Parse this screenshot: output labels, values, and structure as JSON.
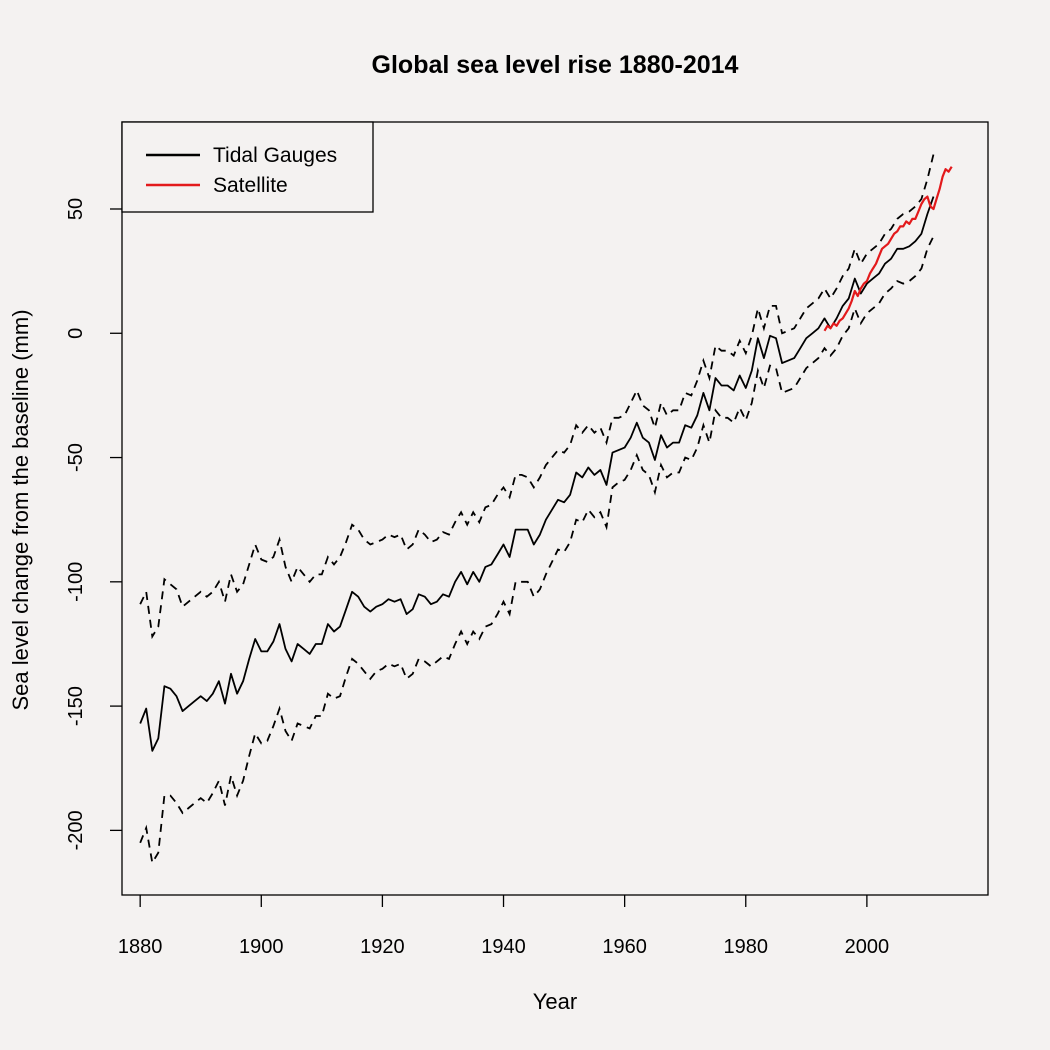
{
  "chart_data": {
    "type": "line",
    "title": "Global sea level rise 1880-2014",
    "xlabel": "Year",
    "ylabel": "Sea level change from the baseline (mm)",
    "xlim": [
      1877,
      2020
    ],
    "ylim": [
      -226,
      85
    ],
    "xticks": [
      1880,
      1900,
      1920,
      1940,
      1960,
      1980,
      2000
    ],
    "yticks": [
      -200,
      -150,
      -100,
      -50,
      0,
      50
    ],
    "grid": false,
    "legend_position": "top-left",
    "colors": {
      "tidal": "#000000",
      "satellite": "#e31a1c",
      "background": "#f4f2f1"
    },
    "legend": [
      {
        "name": "Tidal Gauges",
        "color": "#000000"
      },
      {
        "name": "Satellite",
        "color": "#e31a1c"
      }
    ],
    "x": [
      1880,
      1881,
      1882,
      1883,
      1884,
      1885,
      1886,
      1887,
      1888,
      1889,
      1890,
      1891,
      1892,
      1893,
      1894,
      1895,
      1896,
      1897,
      1898,
      1899,
      1900,
      1901,
      1902,
      1903,
      1904,
      1905,
      1906,
      1907,
      1908,
      1909,
      1910,
      1911,
      1912,
      1913,
      1914,
      1915,
      1916,
      1917,
      1918,
      1919,
      1920,
      1921,
      1922,
      1923,
      1924,
      1925,
      1926,
      1927,
      1928,
      1929,
      1930,
      1931,
      1932,
      1933,
      1934,
      1935,
      1936,
      1937,
      1938,
      1939,
      1940,
      1941,
      1942,
      1943,
      1944,
      1945,
      1946,
      1947,
      1948,
      1949,
      1950,
      1951,
      1952,
      1953,
      1954,
      1955,
      1956,
      1957,
      1958,
      1959,
      1960,
      1961,
      1962,
      1963,
      1964,
      1965,
      1966,
      1967,
      1968,
      1969,
      1970,
      1971,
      1972,
      1973,
      1974,
      1975,
      1976,
      1977,
      1978,
      1979,
      1980,
      1981,
      1982,
      1983,
      1984,
      1985,
      1986,
      1987,
      1988,
      1989,
      1990,
      1991,
      1992,
      1993,
      1994,
      1995,
      1996,
      1997,
      1998,
      1999,
      2000,
      2001,
      2002,
      2003,
      2004,
      2005,
      2006,
      2007,
      2008,
      2009,
      2010,
      2011,
      2012,
      2013
    ],
    "series": [
      {
        "name": "Tidal Gauges",
        "style": "solid",
        "color": "#000000",
        "values": [
          -157,
          -151,
          -168,
          -163,
          -142,
          -143,
          -146,
          -152,
          -150,
          -148,
          -146,
          -148,
          -145,
          -140,
          -149,
          -137,
          -145,
          -140,
          -131,
          -123,
          -128,
          -128,
          -124,
          -117,
          -127,
          -132,
          -125,
          -127,
          -129,
          -125,
          -125,
          -117,
          -120,
          -118,
          -111,
          -104,
          -106,
          -110,
          -112,
          -110,
          -109,
          -107,
          -108,
          -107,
          -113,
          -111,
          -105,
          -106,
          -109,
          -108,
          -105,
          -106,
          -100,
          -96,
          -101,
          -96,
          -100,
          -94,
          -93,
          -89,
          -85,
          -90,
          -79,
          -79,
          -79,
          -85,
          -81,
          -75,
          -71,
          -67,
          -68,
          -65,
          -56,
          -58,
          -54,
          -57,
          -55,
          -61,
          -48,
          -47,
          -46,
          -42,
          -36,
          -42,
          -44,
          -51,
          -41,
          -46,
          -44,
          -44,
          -37,
          -38,
          -33,
          -24,
          -31,
          -18,
          -21,
          -21,
          -23,
          -17,
          -22,
          -15,
          -2,
          -10,
          -1,
          -2,
          -12,
          -11,
          -10,
          -6,
          -2,
          0,
          2,
          6,
          2,
          6,
          11,
          14,
          22,
          16,
          20,
          22,
          24,
          28,
          30,
          34,
          34,
          35,
          37,
          40,
          48,
          55,
          null,
          null
        ],
        "upper": [
          -109,
          -104,
          -122,
          -118,
          -99,
          -101,
          -103,
          -110,
          -108,
          -106,
          -104,
          -106,
          -104,
          -100,
          -108,
          -97,
          -104,
          -101,
          -93,
          -85,
          -91,
          -92,
          -90,
          -83,
          -94,
          -100,
          -94,
          -97,
          -100,
          -97,
          -97,
          -90,
          -93,
          -90,
          -84,
          -77,
          -79,
          -83,
          -85,
          -84,
          -83,
          -81,
          -82,
          -81,
          -87,
          -85,
          -79,
          -81,
          -84,
          -83,
          -80,
          -81,
          -76,
          -72,
          -77,
          -72,
          -76,
          -70,
          -69,
          -65,
          -62,
          -66,
          -57,
          -57,
          -58,
          -62,
          -58,
          -53,
          -50,
          -47,
          -48,
          -45,
          -37,
          -40,
          -37,
          -40,
          -38,
          -44,
          -34,
          -34,
          -33,
          -28,
          -23,
          -29,
          -31,
          -38,
          -28,
          -33,
          -31,
          -31,
          -24,
          -25,
          -19,
          -11,
          -18,
          -5,
          -7,
          -7,
          -9,
          -3,
          -8,
          -1,
          10,
          2,
          11,
          11,
          0,
          1,
          2,
          6,
          10,
          12,
          14,
          18,
          14,
          18,
          23,
          26,
          34,
          28,
          32,
          34,
          36,
          40,
          42,
          46,
          48,
          49,
          51,
          54,
          62,
          72,
          null,
          null
        ],
        "lower": [
          -205,
          -199,
          -213,
          -209,
          -186,
          -186,
          -189,
          -193,
          -191,
          -189,
          -187,
          -189,
          -185,
          -180,
          -190,
          -178,
          -186,
          -180,
          -170,
          -161,
          -165,
          -164,
          -158,
          -151,
          -160,
          -164,
          -157,
          -158,
          -159,
          -154,
          -154,
          -145,
          -147,
          -146,
          -138,
          -131,
          -133,
          -136,
          -139,
          -136,
          -135,
          -133,
          -134,
          -133,
          -139,
          -137,
          -131,
          -132,
          -134,
          -132,
          -130,
          -131,
          -125,
          -120,
          -125,
          -120,
          -123,
          -118,
          -117,
          -113,
          -108,
          -113,
          -100,
          -100,
          -100,
          -106,
          -103,
          -97,
          -92,
          -87,
          -88,
          -84,
          -75,
          -76,
          -71,
          -74,
          -72,
          -78,
          -62,
          -60,
          -59,
          -55,
          -49,
          -55,
          -57,
          -64,
          -53,
          -58,
          -56,
          -56,
          -50,
          -51,
          -46,
          -37,
          -44,
          -31,
          -34,
          -34,
          -36,
          -30,
          -35,
          -28,
          -15,
          -22,
          -13,
          -14,
          -24,
          -23,
          -22,
          -18,
          -14,
          -12,
          -10,
          -6,
          -9,
          -6,
          -1,
          2,
          10,
          4,
          8,
          10,
          12,
          16,
          18,
          21,
          20,
          21,
          23,
          26,
          34,
          39,
          null,
          null
        ]
      },
      {
        "name": "Satellite",
        "style": "solid",
        "color": "#e31a1c",
        "x": [
          1993,
          1993.5,
          1994,
          1994.5,
          1995,
          1995.5,
          1996,
          1996.5,
          1997,
          1997.5,
          1998,
          1998.5,
          1999,
          1999.5,
          2000,
          2000.5,
          2001,
          2001.5,
          2002,
          2002.5,
          2003,
          2003.5,
          2004,
          2004.5,
          2005,
          2005.5,
          2006,
          2006.5,
          2007,
          2007.5,
          2008,
          2008.5,
          2009,
          2009.5,
          2010,
          2010.5,
          2011,
          2011.5,
          2012,
          2012.5,
          2013,
          2013.5,
          2014
        ],
        "values": [
          1,
          3,
          2,
          4,
          3,
          5,
          6,
          8,
          10,
          13,
          17,
          15,
          18,
          20,
          21,
          24,
          26,
          28,
          31,
          34,
          35,
          36,
          38,
          40,
          41,
          43,
          43,
          45,
          44,
          46,
          46,
          49,
          52,
          54,
          55,
          51,
          50,
          54,
          58,
          63,
          66,
          65,
          67
        ]
      }
    ]
  }
}
